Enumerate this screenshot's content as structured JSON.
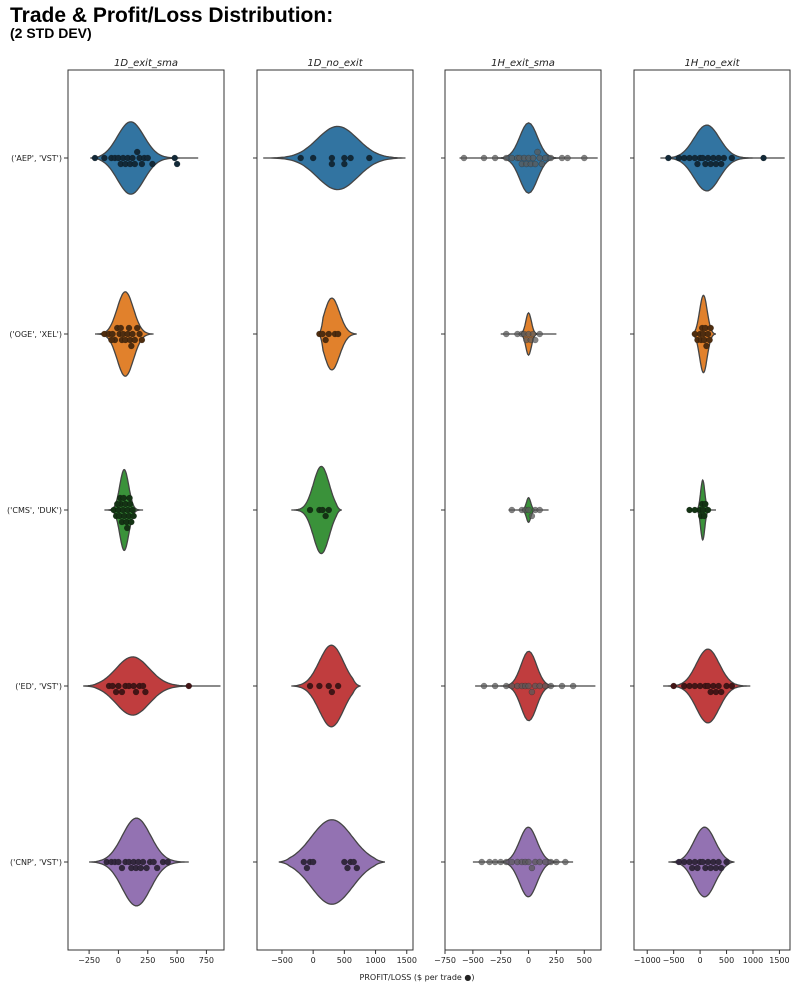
{
  "header": {
    "title": "Trade & Profit/Loss Distribution:",
    "subtitle": "(2 STD DEV)"
  },
  "chart_data": {
    "type": "violin",
    "xlabel": "PROFIT/LOSS ($ per trade ●)",
    "categories": [
      "('AEP', 'VST')",
      "('OGE', 'XEL')",
      "('CMS', 'DUK')",
      "('ED', 'VST')",
      "('CNP', 'VST')"
    ],
    "colors": [
      "#3274a1",
      "#e1812c",
      "#3a923a",
      "#c03d3e",
      "#9372b2"
    ],
    "panels": [
      {
        "name": "1D_exit_sma",
        "xlim": [
          -430,
          900
        ],
        "xticks": [
          -250,
          0,
          250,
          500,
          750
        ],
        "violins": [
          {
            "range": [
              -240,
              680
            ],
            "mean": 90,
            "sd": 120,
            "max_half_width_frac": 0.22,
            "points": [
              -200,
              -120,
              -60,
              -30,
              0,
              20,
              40,
              60,
              80,
              100,
              120,
              140,
              160,
              180,
              200,
              220,
              250,
              290,
              480,
              500
            ]
          },
          {
            "range": [
              -200,
              300
            ],
            "mean": 60,
            "sd": 75,
            "max_half_width_frac": 0.24,
            "points": [
              -120,
              -80,
              -50,
              -30,
              -10,
              10,
              30,
              40,
              60,
              80,
              100,
              120,
              140,
              160,
              180,
              200,
              -60,
              20,
              90,
              110
            ]
          },
          {
            "range": [
              -120,
              210
            ],
            "mean": 50,
            "sd": 40,
            "max_half_width_frac": 0.23,
            "points": [
              -40,
              -20,
              0,
              10,
              20,
              30,
              40,
              50,
              60,
              70,
              80,
              90,
              100,
              110,
              120,
              130,
              -10,
              15,
              45,
              75,
              95
            ]
          },
          {
            "range": [
              -300,
              870
            ],
            "mean": 100,
            "sd": 150,
            "max_half_width_frac": 0.18,
            "points": [
              -80,
              -50,
              -20,
              0,
              30,
              60,
              90,
              130,
              150,
              180,
              210,
              230,
              600
            ]
          },
          {
            "range": [
              -250,
              600
            ],
            "mean": 150,
            "sd": 130,
            "max_half_width_frac": 0.25,
            "points": [
              -100,
              -60,
              -30,
              0,
              30,
              60,
              90,
              110,
              130,
              150,
              170,
              190,
              210,
              240,
              270,
              300,
              330,
              380,
              420
            ]
          }
        ]
      },
      {
        "name": "1D_no_exit",
        "xlim": [
          -900,
          1600
        ],
        "xticks": [
          -500,
          0,
          500,
          1000,
          1500
        ],
        "violins": [
          {
            "range": [
              -800,
              1480
            ],
            "mean": 400,
            "sd": 350,
            "max_half_width_frac": 0.18,
            "points": [
              -200,
              0,
              300,
              500,
              600,
              900,
              300,
              500
            ]
          },
          {
            "range": [
              100,
              700
            ],
            "mean": 250,
            "sd": 150,
            "max_half_width_frac": 0.24,
            "points": [
              100,
              150,
              200,
              250,
              350,
              400
            ]
          },
          {
            "range": [
              -350,
              450
            ],
            "mean": 150,
            "sd": 140,
            "max_half_width_frac": 0.26,
            "points": [
              -50,
              100,
              150,
              200,
              250
            ]
          },
          {
            "range": [
              -350,
              750
            ],
            "mean": 320,
            "sd": 220,
            "max_half_width_frac": 0.24,
            "points": [
              -50,
              100,
              250,
              300,
              400
            ]
          },
          {
            "range": [
              -550,
              1150
            ],
            "mean": 300,
            "sd": 380,
            "max_half_width_frac": 0.24,
            "points": [
              -150,
              -100,
              -50,
              0,
              500,
              550,
              600,
              650,
              700
            ]
          }
        ]
      },
      {
        "name": "1H_exit_sma",
        "xlim": [
          -750,
          650
        ],
        "xticks": [
          -750,
          -500,
          -250,
          0,
          250,
          500
        ],
        "violins": [
          {
            "range": [
              -620,
              620
            ],
            "mean": 0,
            "sd": 80,
            "max_half_width_frac": 0.2,
            "points": [
              -580,
              -400,
              -300,
              -200,
              -150,
              -100,
              -80,
              -60,
              -40,
              -20,
              0,
              20,
              40,
              60,
              80,
              100,
              120,
              150,
              200,
              300,
              350,
              500
            ]
          },
          {
            "range": [
              -250,
              250
            ],
            "mean": 0,
            "sd": 25,
            "max_half_width_frac": 0.12,
            "points": [
              -200,
              -100,
              -60,
              -40,
              -20,
              0,
              20,
              40,
              60,
              100
            ]
          },
          {
            "range": [
              -180,
              180
            ],
            "mean": 0,
            "sd": 20,
            "max_half_width_frac": 0.07,
            "points": [
              -150,
              -60,
              -30,
              0,
              30,
              60,
              100
            ]
          },
          {
            "range": [
              -480,
              600
            ],
            "mean": 0,
            "sd": 70,
            "max_half_width_frac": 0.2,
            "points": [
              -400,
              -300,
              -200,
              -150,
              -100,
              -60,
              -30,
              0,
              30,
              60,
              100,
              150,
              200,
              300,
              400
            ]
          },
          {
            "range": [
              -500,
              400
            ],
            "mean": 0,
            "sd": 80,
            "max_half_width_frac": 0.2,
            "points": [
              -420,
              -350,
              -300,
              -250,
              -200,
              -150,
              -100,
              -60,
              -30,
              0,
              30,
              60,
              100,
              150,
              200,
              250,
              330
            ]
          }
        ]
      },
      {
        "name": "1H_no_exit",
        "xlim": [
          -1250,
          1700
        ],
        "xticks": [
          -1000,
          -500,
          0,
          500,
          1000,
          1500
        ],
        "violins": [
          {
            "range": [
              -750,
              1600
            ],
            "mean": 100,
            "sd": 250,
            "max_half_width_frac": 0.2,
            "points": [
              -600,
              -400,
              -300,
              -200,
              -100,
              -50,
              0,
              50,
              100,
              150,
              200,
              250,
              300,
              350,
              400,
              450,
              600,
              1200
            ]
          },
          {
            "range": [
              -150,
              300
            ],
            "mean": 60,
            "sd": 80,
            "max_half_width_frac": 0.22,
            "points": [
              -100,
              -50,
              0,
              20,
              40,
              60,
              80,
              100,
              120,
              150,
              180,
              200
            ]
          },
          {
            "range": [
              -220,
              300
            ],
            "mean": 50,
            "sd": 40,
            "max_half_width_frac": 0.17,
            "points": [
              -200,
              -100,
              0,
              20,
              40,
              60,
              80,
              100,
              150
            ]
          },
          {
            "range": [
              -700,
              950
            ],
            "mean": 150,
            "sd": 230,
            "max_half_width_frac": 0.21,
            "points": [
              -500,
              -300,
              -200,
              -100,
              0,
              100,
              150,
              200,
              250,
              300,
              350,
              400,
              500,
              600
            ]
          },
          {
            "range": [
              -600,
              650
            ],
            "mean": 100,
            "sd": 220,
            "max_half_width_frac": 0.2,
            "points": [
              -400,
              -300,
              -200,
              -150,
              -100,
              -50,
              0,
              50,
              100,
              150,
              200,
              250,
              300,
              350,
              400,
              500
            ]
          }
        ]
      }
    ]
  }
}
